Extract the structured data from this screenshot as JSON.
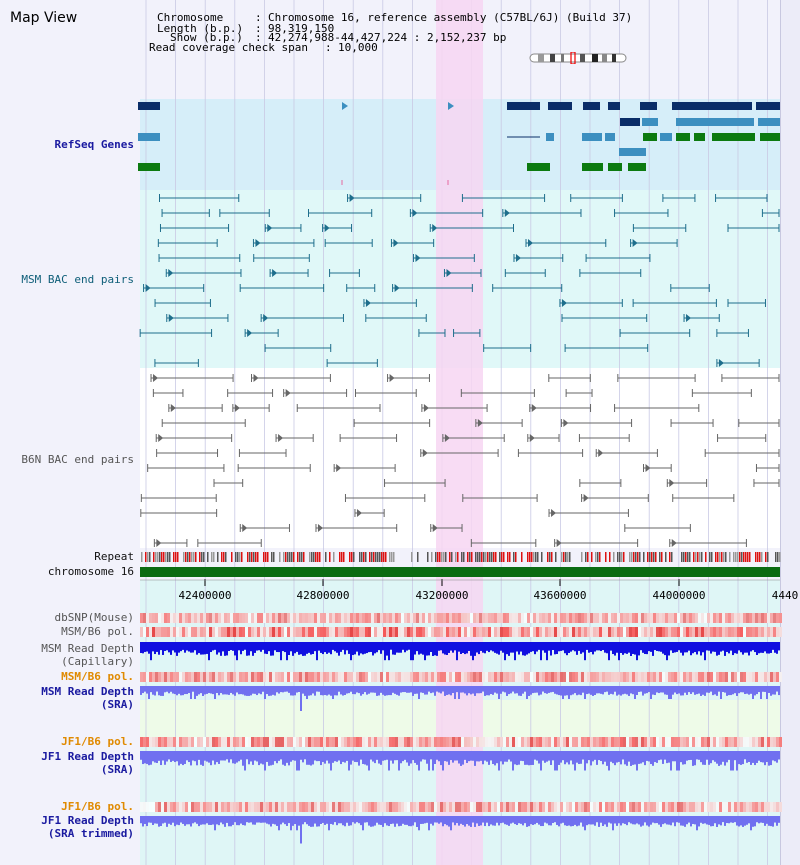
{
  "page": {
    "title": "Map View"
  },
  "info": {
    "chromosome_label": "Chromosome",
    "chromosome_value": "Chromosome 16, reference assembly (C57BL/6J) (Build 37)",
    "length_label": "Length (b.p.)",
    "length_value": "98,319,150",
    "show_label": "Show (b.p.)",
    "show_value": "42,274,988-44,427,224 : 2,152,237 bp",
    "coverage_label": "Read coverage check span",
    "coverage_value": "10,000"
  },
  "tracks": {
    "refseq": "RefSeq Genes",
    "msm_bac": "MSM BAC end pairs",
    "b6n_bac": "B6N BAC end pairs",
    "repeat": "Repeat",
    "chromosome": "chromosome 16",
    "dbsnp": "dbSNP(Mouse)",
    "msm_b6_pol_1": "MSM/B6 pol.",
    "msm_depth_cap_1": "MSM Read Depth",
    "msm_depth_cap_2": "(Capillary)",
    "msm_b6_pol_2": "MSM/B6 pol.",
    "msm_depth_sra_1": "MSM Read Depth",
    "msm_depth_sra_2": "(SRA)",
    "jf1_b6_pol_1": "JF1/B6 pol.",
    "jf1_depth_sra_1": "JF1 Read Depth",
    "jf1_depth_sra_2": "(SRA)",
    "jf1_b6_pol_2": "JF1/B6 pol.",
    "jf1_depth_trim_1": "JF1 Read Depth",
    "jf1_depth_trim_2": "(SRA trimmed)"
  },
  "axis": {
    "ticks": [
      "42400000",
      "42800000",
      "43200000",
      "43600000",
      "44000000",
      "4440"
    ]
  },
  "colors": {
    "highlight": "#f7d6f2",
    "refseq_bg": "#d6eef9",
    "bac_bg": "#e0f8f8",
    "gene_navy": "#0a2d68",
    "gene_blue": "#3c8fc0",
    "gene_green": "#0c7a10",
    "msm_line": "#1e6e8c",
    "b6n_line": "#666666",
    "chromosome_bar": "#0b6b12",
    "depth_dark": "#1010e0",
    "depth_light": "#7070f0"
  }
}
